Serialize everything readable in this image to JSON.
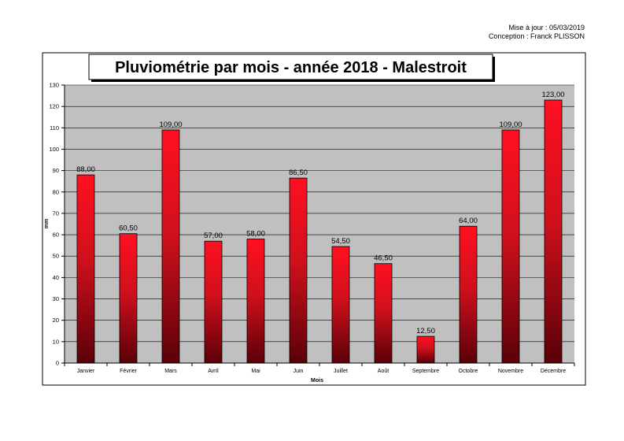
{
  "meta": {
    "updated": "Mise à jour : 05/03/2019",
    "author": "Conception : Franck PLISSON"
  },
  "chart_data": {
    "type": "bar",
    "title": "Pluviométrie par mois - année 2018 - Malestroit",
    "xlabel": "Mois",
    "ylabel": "mm",
    "ylim": [
      0,
      130
    ],
    "yticks": [
      0,
      10,
      20,
      30,
      40,
      50,
      60,
      70,
      80,
      90,
      100,
      110,
      120,
      130
    ],
    "grid": true,
    "categories": [
      "Janvier",
      "Février",
      "Mars",
      "Avril",
      "Mai",
      "Juin",
      "Juillet",
      "Août",
      "Septembre",
      "Octobre",
      "Novembre",
      "Décembre"
    ],
    "values": [
      88,
      60.5,
      109,
      57,
      58,
      86.5,
      54.5,
      46.5,
      12.5,
      64,
      109,
      123
    ],
    "value_labels": [
      "88,00",
      "60,50",
      "109,00",
      "57,00",
      "58,00",
      "86,50",
      "54,50",
      "46,50",
      "12,50",
      "64,00",
      "109,00",
      "123,00"
    ],
    "colors": {
      "plot_background": "#c0c0c0",
      "bar_top": "#ff1020",
      "bar_bottom": "#5a0008",
      "gridline": "#000000"
    }
  }
}
